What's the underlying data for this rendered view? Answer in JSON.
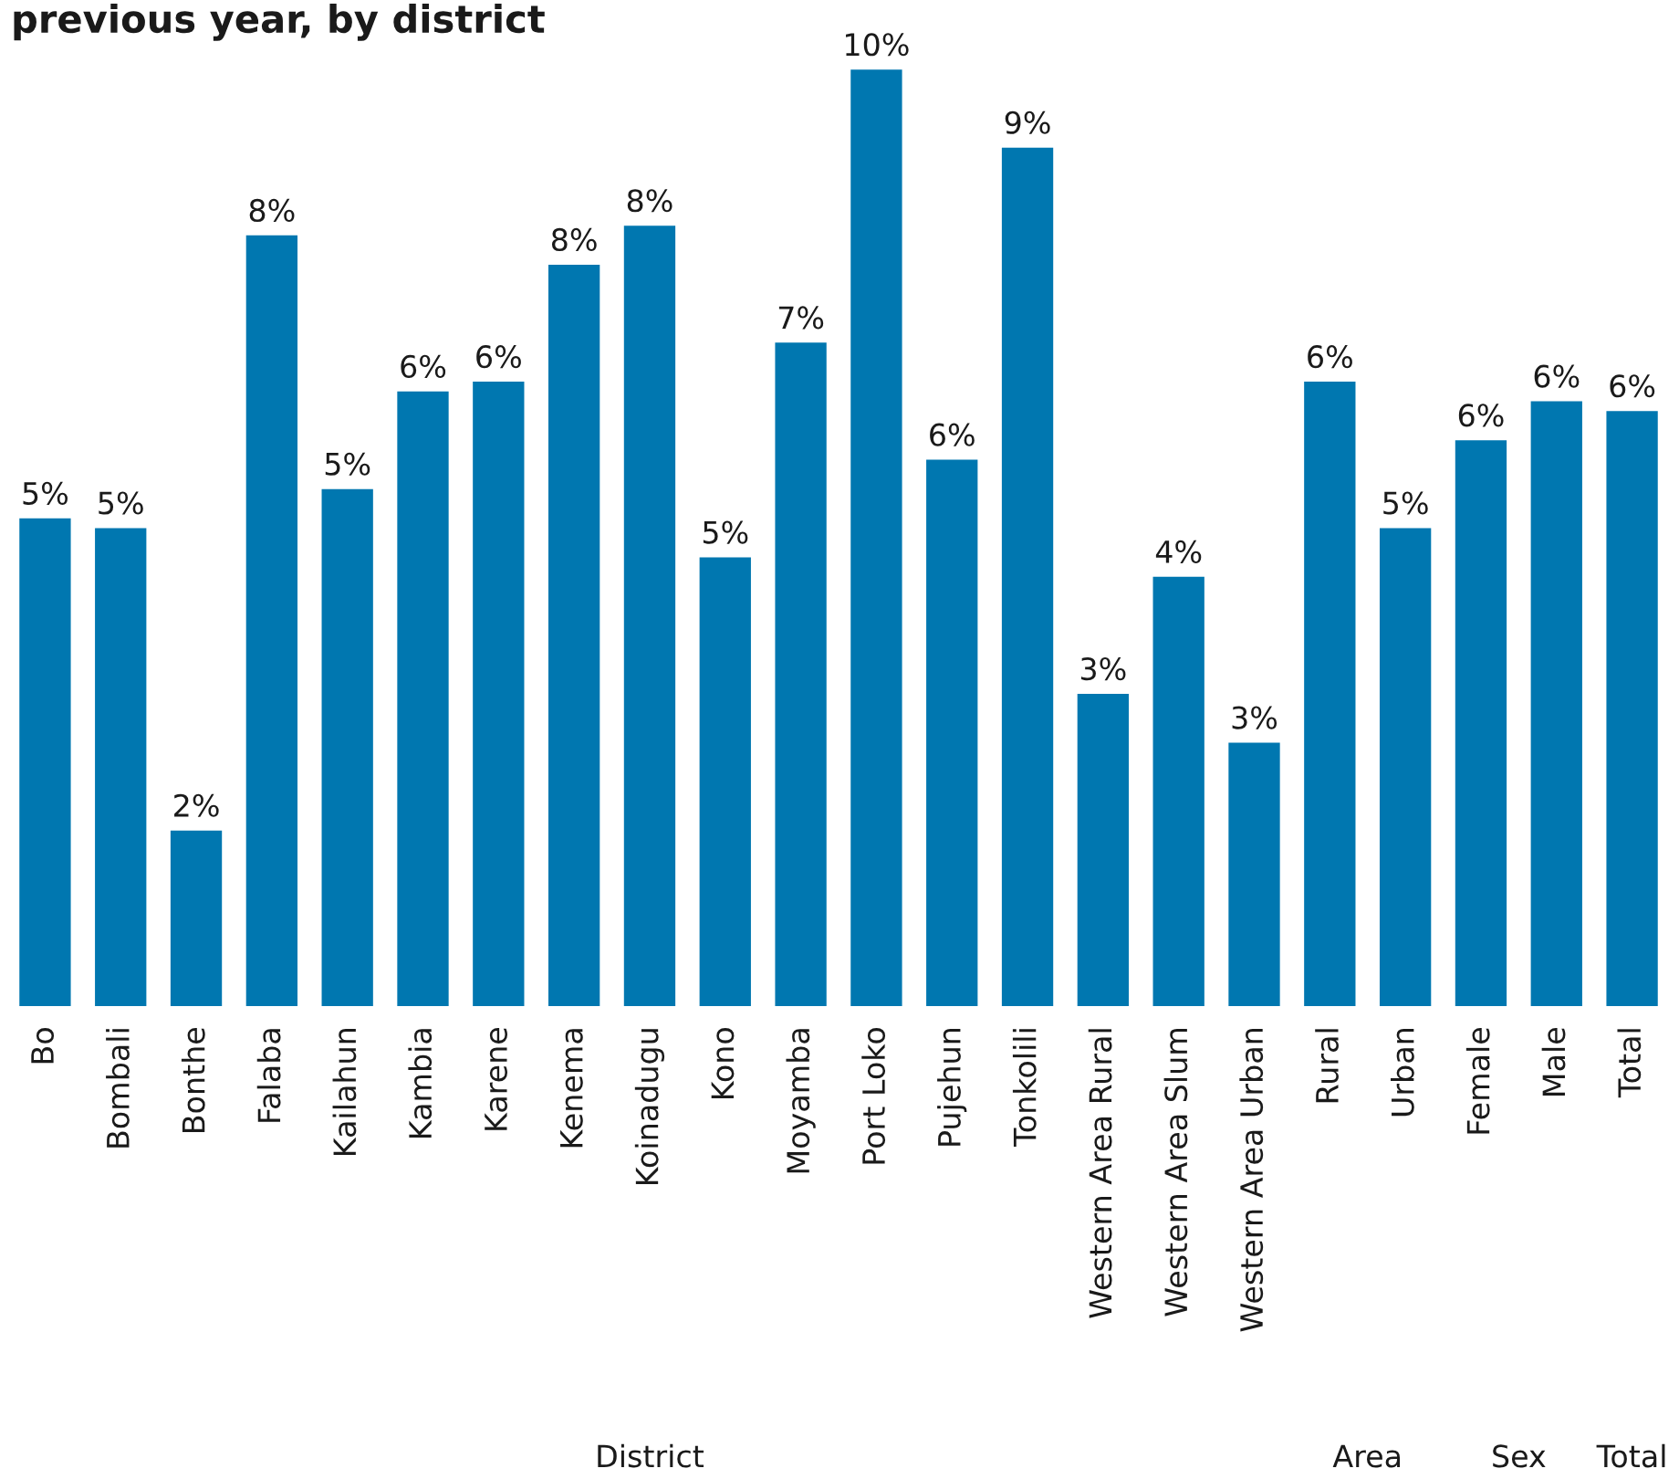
{
  "chart_data": {
    "type": "bar",
    "title": "previous year, by district",
    "categories": [
      "Bo",
      "Bombali",
      "Bonthe",
      "Falaba",
      "Kailahun",
      "Kambia",
      "Karene",
      "Kenema",
      "Koinadugu",
      "Kono",
      "Moyamba",
      "Port Loko",
      "Pujehun",
      "Tonkolili",
      "Western Area Rural",
      "Western Area Slum",
      "Western Area Urban",
      "Rural",
      "Urban",
      "Female",
      "Male",
      "Total"
    ],
    "values": [
      5.0,
      4.9,
      1.8,
      7.9,
      5.3,
      6.3,
      6.4,
      7.6,
      8.0,
      4.6,
      6.8,
      9.6,
      5.6,
      8.8,
      3.2,
      4.4,
      2.7,
      6.4,
      4.9,
      5.8,
      6.2,
      6.1
    ],
    "value_labels": [
      "5%",
      "5%",
      "2%",
      "8%",
      "5%",
      "6%",
      "6%",
      "8%",
      "8%",
      "5%",
      "7%",
      "10%",
      "6%",
      "9%",
      "3%",
      "4%",
      "3%",
      "6%",
      "5%",
      "6%",
      "6%",
      "6%"
    ],
    "color": "#0077b0",
    "annotations": [
      "District",
      "Area",
      "Sex",
      "Total"
    ],
    "tick_labels": "x"
  }
}
